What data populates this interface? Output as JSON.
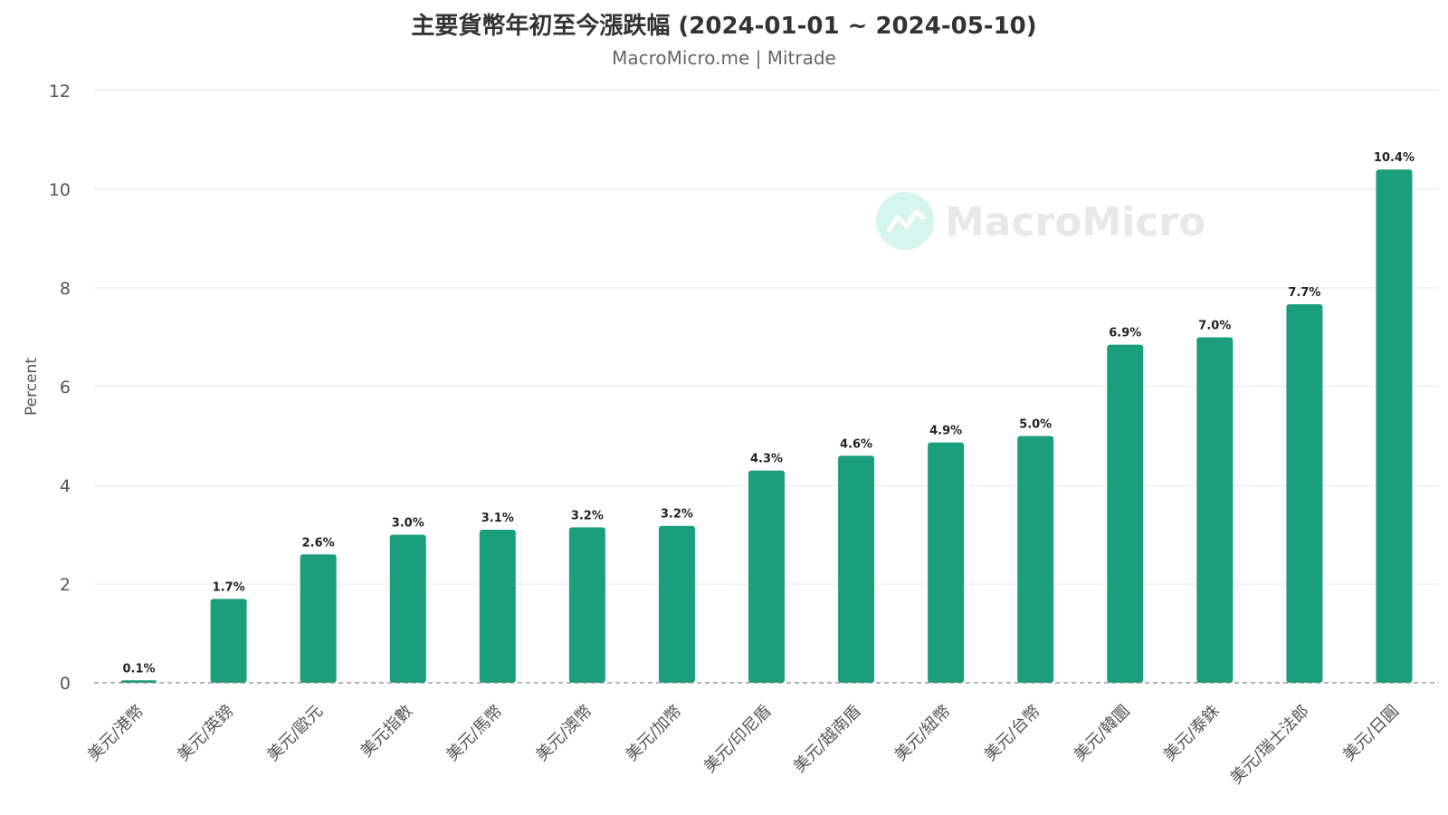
{
  "header": {
    "title": "主要貨幣年初至今漲跌幅 (2024-01-01 ~ 2024-05-10)",
    "subtitle": "MacroMicro.me | Mitrade"
  },
  "watermark": {
    "text": "MacroMicro",
    "icon": "macromicro-logo-icon"
  },
  "colors": {
    "bar": "#1a9e7c",
    "grid": "#e6e6e6",
    "baseline": "#888888",
    "watermark_icon": "#d6f5ec"
  },
  "chart_data": {
    "type": "bar",
    "title": "主要貨幣年初至今漲跌幅 (2024-01-01 ~ 2024-05-10)",
    "subtitle": "MacroMicro.me | Mitrade",
    "xlabel": "",
    "ylabel": "Percent",
    "ylim": [
      0,
      12
    ],
    "yticks": [
      0,
      2,
      4,
      6,
      8,
      10,
      12
    ],
    "grid": true,
    "legend": "none",
    "categories": [
      "美元/港幣",
      "美元/英鎊",
      "美元/歐元",
      "美元指數",
      "美元/馬幣",
      "美元/澳幣",
      "美元/加幣",
      "美元/印尼盾",
      "美元/越南盾",
      "美元/紐幣",
      "美元/台幣",
      "美元/韓圜",
      "美元/泰銖",
      "美元/瑞士法郎",
      "美元/日圓"
    ],
    "values": [
      0.05,
      1.7,
      2.6,
      3.0,
      3.1,
      3.15,
      3.18,
      4.3,
      4.6,
      4.87,
      5.0,
      6.85,
      7.0,
      7.67,
      10.4
    ],
    "data_labels": [
      "0.1%",
      "1.7%",
      "2.6%",
      "3.0%",
      "3.1%",
      "3.2%",
      "3.2%",
      "4.3%",
      "4.6%",
      "4.9%",
      "5.0%",
      "6.9%",
      "7.0%",
      "7.7%",
      "10.4%"
    ]
  }
}
